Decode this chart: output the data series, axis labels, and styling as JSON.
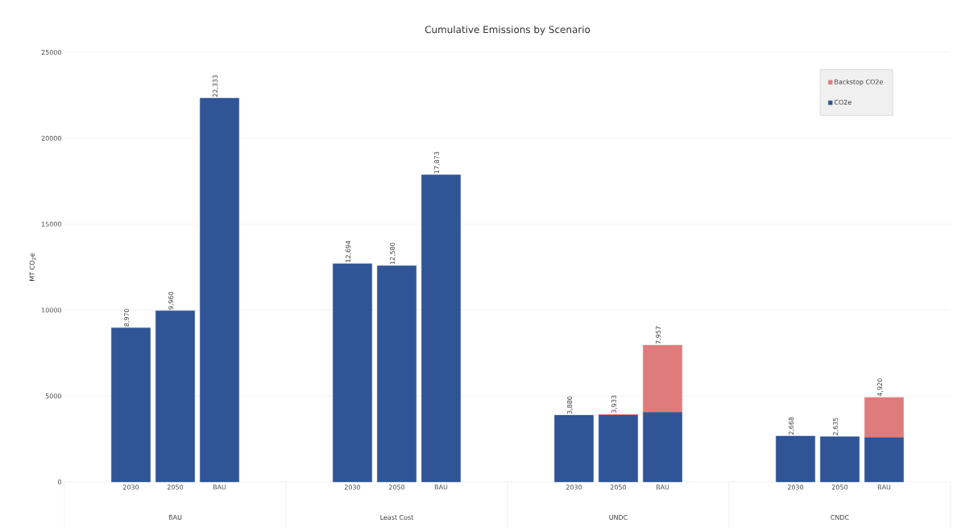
{
  "chart_data": {
    "type": "bar",
    "title": "Cumulative Emissions by Scenario",
    "ylabel": "MT CO$_{2}$e",
    "categories": [
      "2030",
      "2050",
      "BAU",
      "2030",
      "2050",
      "BAU",
      "2030",
      "2050",
      "BAU",
      "2030",
      "2050",
      "BAU"
    ],
    "annotations": [
      "BAU",
      "Least Cost",
      "UNDC",
      "CNDC"
    ],
    "stacked": true,
    "series": [
      {
        "name": "CO2e",
        "color": "#2f5597",
        "values": [
          8970,
          9960,
          22333,
          12694,
          12580,
          17873,
          3880,
          3880,
          4050,
          2668,
          2635,
          2575
        ]
      },
      {
        "name": "Backstop CO2e",
        "color": "#e07b7b",
        "values": [
          0,
          0,
          0,
          0,
          0,
          0,
          0,
          53,
          3907,
          0,
          0,
          2345
        ]
      }
    ],
    "totals": [
      "8,970",
      "9,960",
      "22,333",
      "12,694",
      "12,580",
      "17,873",
      "3,880",
      "3,933",
      "7,957",
      "2,668",
      "2,635",
      "4,920"
    ],
    "ylim": [
      0,
      25000
    ],
    "yticks": [
      0,
      5000,
      10000,
      15000,
      20000,
      25000
    ],
    "grid": "y",
    "legend": "top right"
  }
}
